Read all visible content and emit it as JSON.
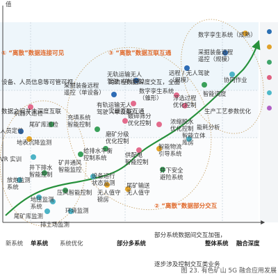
{
  "axis": {
    "y_label": "值",
    "x_label": "融合深度"
  },
  "x_ticks": [
    {
      "text": "新系统",
      "bold": false
    },
    {
      "text": "单系统",
      "bold": true
    },
    {
      "text": "系统优化",
      "bold": false
    },
    {
      "text": "部分多系统",
      "bold": true
    },
    {
      "text": "整体系统",
      "bold": true
    }
  ],
  "callouts": {
    "one": {
      "heading": "① “离散”数据连接可见",
      "line1": "设备、人员信息等可管可视，",
      "line2": "数据之间并未深度互联"
    },
    "two": {
      "heading": "② “离散”数据部分交互",
      "line1": "部分系统数据间交互加强，",
      "line2": "逐步涉及控制交互类业务"
    },
    "three": {
      "heading": "③ “离散”数据互联互通",
      "line1": "跨流程数据深度交互，全面",
      "line2": "实现互联互通"
    }
  },
  "nodes": [
    "数字孪生系统（成熟）",
    "采掘装备远程\n遥控（规模）",
    "远程 / 无人驾驶\n（规模）",
    "协同作业",
    "智能调度",
    "生产工艺参数优化",
    "能耗分析",
    "无轨运输无人\n驾驶（单设备）",
    "采掘装备远程\n遥控（单设备）",
    "数字孪生系统\n（雏形）",
    "浮选过程\n优化控制",
    "浓缩脱水\n优化控制",
    "有轨运输无人\n驾驶（单设备）",
    "破碎筛分\n优化控制",
    "磨矿分级\n优化控制",
    "智能立体\n库房",
    "充填系统\n智能控制",
    "供配电\n智能控制",
    "智能物流\n引导系统",
    "给排水平衡\n控制系统",
    "矿井通风\n智能监控",
    "井下安全\n避险系统",
    "机器人巡检",
    "尾矿库巡检",
    "人员定位",
    "地表沉降监测",
    "VR 实训",
    "井下排水\n智能控制",
    "放炮监测\n系统",
    "设备运行\n状态监测",
    "压风智能控制",
    "无人值守\n磅房",
    "尾矿输送\n无人值守",
    "地压监测\n系统",
    "环境监测",
    "尾矿库监测",
    "排土场监测"
  ],
  "legend_colors": [
    "#2a6fb3",
    "#e0a12a",
    "#3fa56a",
    "#e06080",
    "#4db8c8",
    "#b05fc5"
  ],
  "colors": {
    "accent_orange": "#e06a2c",
    "curve_green": "#27913c",
    "dot_blue": "#2e6cb5",
    "dot_pink": "#e36b8c",
    "dot_teal": "#4db3c6",
    "dot_green": "#3aa05a",
    "dot_yellow": "#e7a72a"
  },
  "caption": "图 23. 有色矿山 5G 融合应用发展"
}
